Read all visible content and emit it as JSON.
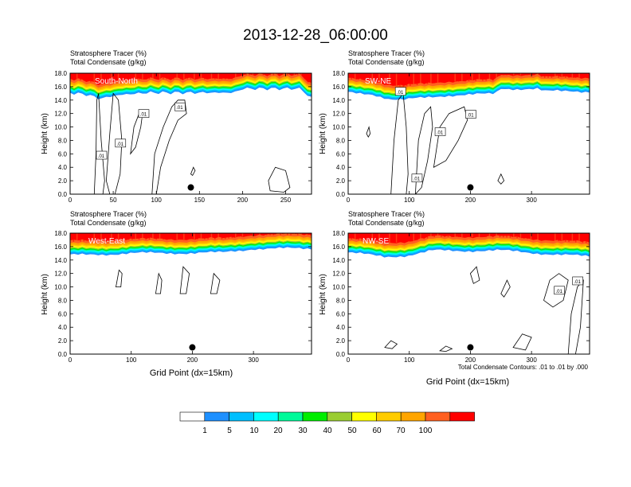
{
  "figure": {
    "title": "2013-12-28_06:00:00",
    "footnote": "Total Condensate Contours: .01 to .01 by .000",
    "colors": {
      "tracer_bins": [
        "#ffffff",
        "#1e90ff",
        "#00bfff",
        "#00ffff",
        "#00fa9a",
        "#00ee00",
        "#9acd32",
        "#ffff00",
        "#ffcc00",
        "#ffa500",
        "#ff6020",
        "#ff0000"
      ],
      "contour": "#000000",
      "marker": "#000000"
    }
  },
  "colorbar": {
    "labels": [
      "1",
      "5",
      "10",
      "20",
      "30",
      "40",
      "50",
      "60",
      "70",
      "100"
    ]
  },
  "chart_data": [
    {
      "type": "heatmap",
      "region": "South-North",
      "title_line1": "Stratosphere Tracer   (%)",
      "title_line2": "Total Condensate   (g/kg)",
      "xlabel": "",
      "ylabel": "Height (km)",
      "xlim": [
        0,
        280
      ],
      "ylim": [
        0,
        18
      ],
      "xticks": [
        0,
        50,
        100,
        150,
        200,
        250
      ],
      "yticks": [
        0.0,
        2.0,
        4.0,
        6.0,
        8.0,
        10.0,
        12.0,
        14.0,
        16.0,
        18.0
      ],
      "tropopause_km": [
        [
          0,
          16.0
        ],
        [
          20,
          15.7
        ],
        [
          35,
          15.1
        ],
        [
          45,
          15.4
        ],
        [
          60,
          15.7
        ],
        [
          90,
          16.0
        ],
        [
          160,
          16.0
        ],
        [
          190,
          16.0
        ],
        [
          200,
          16.6
        ],
        [
          260,
          16.6
        ],
        [
          268,
          16.6
        ],
        [
          275,
          15.6
        ],
        [
          280,
          15.3
        ]
      ],
      "marker": {
        "x": 140,
        "y": 1.0
      },
      "contour_labels": [
        {
          "text": ".01",
          "x": 36,
          "y": 5.8
        },
        {
          "text": ".01",
          "x": 58,
          "y": 7.6
        },
        {
          "text": ".01",
          "x": 85,
          "y": 12.0
        },
        {
          "text": ".01",
          "x": 127,
          "y": 13.0
        }
      ]
    },
    {
      "type": "heatmap",
      "region": "SW-NE",
      "title_line1": "Stratosphere Tracer   (%)",
      "title_line2": "Total Condensate   (g/kg)",
      "xlabel": "",
      "ylabel": "Height (km)",
      "xlim": [
        0,
        395
      ],
      "ylim": [
        0,
        18
      ],
      "xticks": [
        0,
        100,
        200,
        300
      ],
      "yticks": [
        0.0,
        2.0,
        4.0,
        6.0,
        8.0,
        10.0,
        12.0,
        14.0,
        16.0,
        18.0
      ],
      "tropopause_km": [
        [
          0,
          16.0
        ],
        [
          40,
          15.8
        ],
        [
          70,
          15.0
        ],
        [
          90,
          14.9
        ],
        [
          120,
          15.2
        ],
        [
          160,
          15.6
        ],
        [
          240,
          15.8
        ],
        [
          250,
          16.6
        ],
        [
          310,
          16.6
        ],
        [
          320,
          16.2
        ],
        [
          395,
          16.2
        ]
      ],
      "marker": {
        "x": 200,
        "y": 1.0
      },
      "contour_labels": [
        {
          "text": ".01",
          "x": 85,
          "y": 15.3
        },
        {
          "text": ".01",
          "x": 150,
          "y": 9.3
        },
        {
          "text": ".01",
          "x": 200,
          "y": 11.9
        },
        {
          "text": ".01",
          "x": 112,
          "y": 2.4
        }
      ]
    },
    {
      "type": "heatmap",
      "region": "West-East",
      "title_line1": "Stratosphere Tracer   (%)",
      "title_line2": "Total Condensate   (g/kg)",
      "xlabel": "Grid Point (dx=15km)",
      "ylabel": "Height (km)",
      "xlim": [
        0,
        395
      ],
      "ylim": [
        0,
        18
      ],
      "xticks": [
        0,
        100,
        200,
        300
      ],
      "yticks": [
        0.0,
        2.0,
        4.0,
        6.0,
        8.0,
        10.0,
        12.0,
        14.0,
        16.0,
        18.0
      ],
      "tropopause_km": [
        [
          0,
          15.6
        ],
        [
          100,
          15.9
        ],
        [
          250,
          16.0
        ],
        [
          300,
          16.6
        ],
        [
          395,
          16.6
        ]
      ],
      "marker": {
        "x": 200,
        "y": 1.0
      },
      "contour_labels": []
    },
    {
      "type": "heatmap",
      "region": "NW-SE",
      "title_line1": "Stratosphere Tracer   (%)",
      "title_line2": "Total Condensate   (g/kg)",
      "xlabel": "Grid Point (dx=15km)",
      "ylabel": "Height (km)",
      "xlim": [
        0,
        395
      ],
      "ylim": [
        0,
        18
      ],
      "xticks": [
        0,
        100,
        200,
        300
      ],
      "yticks": [
        0.0,
        2.0,
        4.0,
        6.0,
        8.0,
        10.0,
        12.0,
        14.0,
        16.0,
        18.0
      ],
      "tropopause_km": [
        [
          0,
          16.0
        ],
        [
          60,
          15.4
        ],
        [
          100,
          15.6
        ],
        [
          140,
          16.3
        ],
        [
          200,
          16.3
        ],
        [
          250,
          16.3
        ],
        [
          300,
          16.0
        ],
        [
          360,
          15.6
        ],
        [
          395,
          15.4
        ]
      ],
      "marker": {
        "x": 200,
        "y": 1.0
      },
      "contour_labels": [
        {
          "text": ".01",
          "x": 345,
          "y": 9.5
        },
        {
          "text": ".01",
          "x": 375,
          "y": 10.9
        }
      ]
    }
  ]
}
